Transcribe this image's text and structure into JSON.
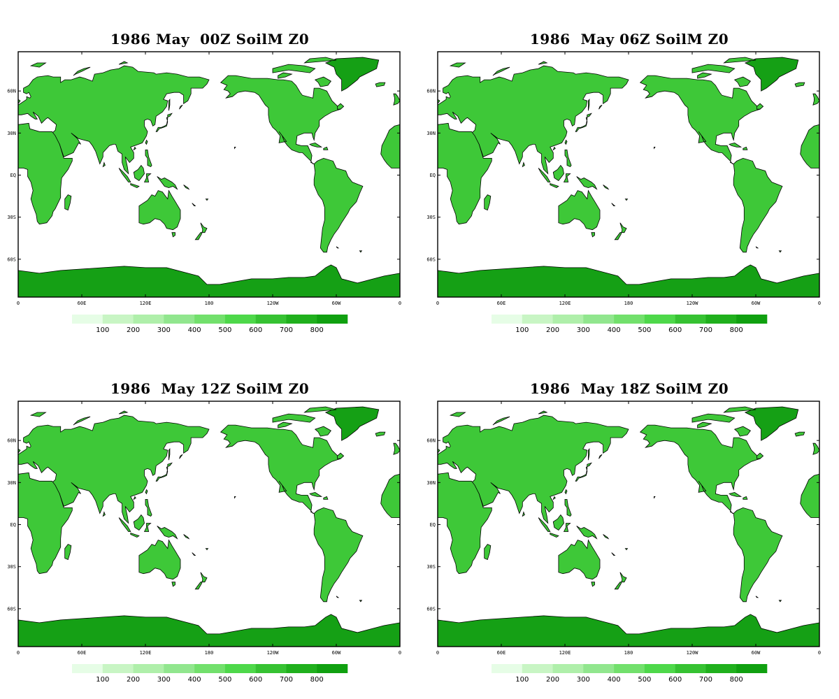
{
  "panels": [
    {
      "title": "1986 May  00Z SoilM Z0"
    },
    {
      "title": "1986  May 06Z SoilM Z0"
    },
    {
      "title": "1986  May 12Z SoilM Z0"
    },
    {
      "title": "1986  May 18Z SoilM Z0"
    }
  ],
  "lat_ticks": [
    "60N",
    "30N",
    "EQ",
    "30S",
    "60S"
  ],
  "lat_values": [
    60,
    30,
    0,
    -30,
    -60
  ],
  "lon_ticks": [
    "0",
    "60E",
    "120E",
    "180",
    "120W",
    "60W",
    "0"
  ],
  "lon_values": [
    0,
    60,
    120,
    180,
    240,
    300,
    360
  ],
  "colorbar": {
    "labels": [
      "100",
      "200",
      "300",
      "400",
      "500",
      "600",
      "700",
      "800"
    ],
    "colors": [
      "#e6fde6",
      "#c8f5c4",
      "#afefaa",
      "#91e68e",
      "#72e06c",
      "#4ed84a",
      "#36c232",
      "#20b01d",
      "#10a010"
    ]
  },
  "land_color": "#3ec838",
  "ice_color": "#15a015"
}
